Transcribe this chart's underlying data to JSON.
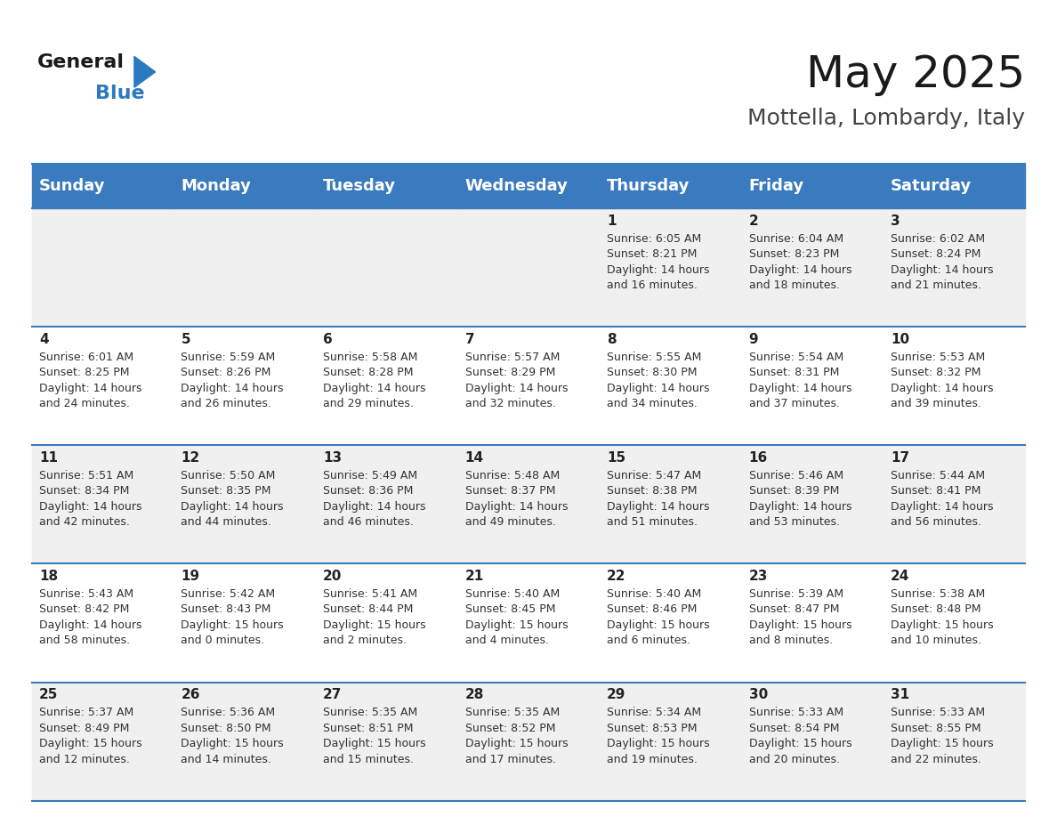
{
  "title": "May 2025",
  "subtitle": "Mottella, Lombardy, Italy",
  "days_of_week": [
    "Sunday",
    "Monday",
    "Tuesday",
    "Wednesday",
    "Thursday",
    "Friday",
    "Saturday"
  ],
  "header_bg": "#3a7abf",
  "header_text": "#ffffff",
  "row_bg_odd": "#f0f0f0",
  "row_bg_even": "#ffffff",
  "border_color": "#3a7abf",
  "cell_text_color": "#333333",
  "day_num_color": "#222222",
  "calendar_data": [
    [
      "",
      "",
      "",
      "",
      "1\nSunrise: 6:05 AM\nSunset: 8:21 PM\nDaylight: 14 hours\nand 16 minutes.",
      "2\nSunrise: 6:04 AM\nSunset: 8:23 PM\nDaylight: 14 hours\nand 18 minutes.",
      "3\nSunrise: 6:02 AM\nSunset: 8:24 PM\nDaylight: 14 hours\nand 21 minutes."
    ],
    [
      "4\nSunrise: 6:01 AM\nSunset: 8:25 PM\nDaylight: 14 hours\nand 24 minutes.",
      "5\nSunrise: 5:59 AM\nSunset: 8:26 PM\nDaylight: 14 hours\nand 26 minutes.",
      "6\nSunrise: 5:58 AM\nSunset: 8:28 PM\nDaylight: 14 hours\nand 29 minutes.",
      "7\nSunrise: 5:57 AM\nSunset: 8:29 PM\nDaylight: 14 hours\nand 32 minutes.",
      "8\nSunrise: 5:55 AM\nSunset: 8:30 PM\nDaylight: 14 hours\nand 34 minutes.",
      "9\nSunrise: 5:54 AM\nSunset: 8:31 PM\nDaylight: 14 hours\nand 37 minutes.",
      "10\nSunrise: 5:53 AM\nSunset: 8:32 PM\nDaylight: 14 hours\nand 39 minutes."
    ],
    [
      "11\nSunrise: 5:51 AM\nSunset: 8:34 PM\nDaylight: 14 hours\nand 42 minutes.",
      "12\nSunrise: 5:50 AM\nSunset: 8:35 PM\nDaylight: 14 hours\nand 44 minutes.",
      "13\nSunrise: 5:49 AM\nSunset: 8:36 PM\nDaylight: 14 hours\nand 46 minutes.",
      "14\nSunrise: 5:48 AM\nSunset: 8:37 PM\nDaylight: 14 hours\nand 49 minutes.",
      "15\nSunrise: 5:47 AM\nSunset: 8:38 PM\nDaylight: 14 hours\nand 51 minutes.",
      "16\nSunrise: 5:46 AM\nSunset: 8:39 PM\nDaylight: 14 hours\nand 53 minutes.",
      "17\nSunrise: 5:44 AM\nSunset: 8:41 PM\nDaylight: 14 hours\nand 56 minutes."
    ],
    [
      "18\nSunrise: 5:43 AM\nSunset: 8:42 PM\nDaylight: 14 hours\nand 58 minutes.",
      "19\nSunrise: 5:42 AM\nSunset: 8:43 PM\nDaylight: 15 hours\nand 0 minutes.",
      "20\nSunrise: 5:41 AM\nSunset: 8:44 PM\nDaylight: 15 hours\nand 2 minutes.",
      "21\nSunrise: 5:40 AM\nSunset: 8:45 PM\nDaylight: 15 hours\nand 4 minutes.",
      "22\nSunrise: 5:40 AM\nSunset: 8:46 PM\nDaylight: 15 hours\nand 6 minutes.",
      "23\nSunrise: 5:39 AM\nSunset: 8:47 PM\nDaylight: 15 hours\nand 8 minutes.",
      "24\nSunrise: 5:38 AM\nSunset: 8:48 PM\nDaylight: 15 hours\nand 10 minutes."
    ],
    [
      "25\nSunrise: 5:37 AM\nSunset: 8:49 PM\nDaylight: 15 hours\nand 12 minutes.",
      "26\nSunrise: 5:36 AM\nSunset: 8:50 PM\nDaylight: 15 hours\nand 14 minutes.",
      "27\nSunrise: 5:35 AM\nSunset: 8:51 PM\nDaylight: 15 hours\nand 15 minutes.",
      "28\nSunrise: 5:35 AM\nSunset: 8:52 PM\nDaylight: 15 hours\nand 17 minutes.",
      "29\nSunrise: 5:34 AM\nSunset: 8:53 PM\nDaylight: 15 hours\nand 19 minutes.",
      "30\nSunrise: 5:33 AM\nSunset: 8:54 PM\nDaylight: 15 hours\nand 20 minutes.",
      "31\nSunrise: 5:33 AM\nSunset: 8:55 PM\nDaylight: 15 hours\nand 22 minutes."
    ]
  ],
  "title_fontsize": 36,
  "subtitle_fontsize": 18,
  "header_fontsize": 13,
  "cell_day_fontsize": 11,
  "cell_info_fontsize": 9,
  "logo_text_general": "General",
  "logo_text_blue": "Blue",
  "logo_color_general": "#1a1a1a",
  "logo_color_blue": "#2b7abf"
}
